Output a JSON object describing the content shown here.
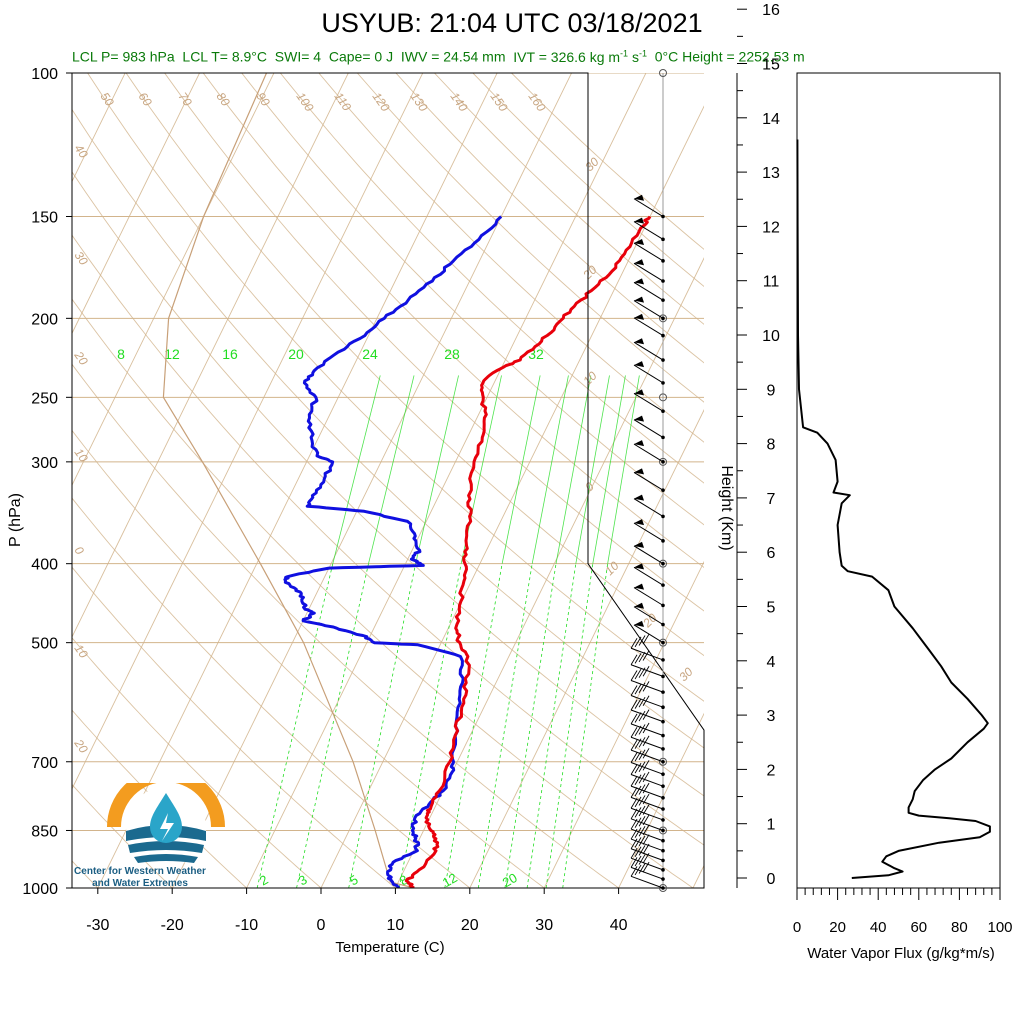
{
  "title": "USYUB: 21:04 UTC 03/18/2021",
  "subtitle": {
    "lcl_p": "LCL P= 983 hPa",
    "lcl_t": "LCL T= 8.9°C",
    "swi": "SWI= 4",
    "cape": "Cape= 0 J",
    "iwv": "IWV = 24.54 mm",
    "ivt_prefix": "IVT = 326.6 kg m",
    "ivt_exp1": "-1",
    "ivt_mid": " s",
    "ivt_exp2": "-1",
    "zero_height": "0°C Height = 2252.53 m"
  },
  "logo": {
    "line1": "Center for Western Weather",
    "line2": "and Water Extremes"
  },
  "colors": {
    "temperature": "#e8000b",
    "dewpoint": "#1010e0",
    "isotherm": "#d2b48c",
    "mixing_ratio": "#22dd22",
    "dry_adiabat": "#d2b48c",
    "parcel": "#c8a078",
    "subtitle": "#0a7a0a"
  },
  "chart_data": [
    {
      "type": "line",
      "name": "skew-T",
      "xlabel": "Temperature (C)",
      "ylabel": "P (hPa)",
      "x_ticks": [
        "-30",
        "-20",
        "-10",
        "0",
        "10",
        "20",
        "30",
        "40"
      ],
      "y_ticks": [
        "100",
        "150",
        "200",
        "250",
        "300",
        "400",
        "500",
        "700",
        "850",
        "1000"
      ],
      "y_scale": "log",
      "xlim": [
        -33,
        40
      ],
      "ylim": [
        1000,
        100
      ],
      "isotherm_labels": [
        "50",
        "60",
        "70",
        "80",
        "90",
        "100",
        "110",
        "120",
        "130",
        "140",
        "150",
        "160",
        "40",
        "30",
        "20",
        "10",
        "0",
        "10",
        "20",
        "30",
        "-30",
        "-20",
        "-10",
        "0",
        "10",
        "20",
        "30"
      ],
      "isotherm_label_values_left": [
        "40",
        "30",
        "20",
        "10",
        "0",
        "10",
        "20"
      ],
      "mixing_ratio_labels_top": [
        "8",
        "12",
        "16",
        "20",
        "24",
        "28",
        "32"
      ],
      "mixing_ratio_labels_bottom": [
        "2",
        "3",
        "5",
        "8",
        "12",
        "20"
      ],
      "temperature": [
        {
          "p": 1000,
          "t": 12.5
        },
        {
          "p": 980,
          "t": 11.0
        },
        {
          "p": 950,
          "t": 12.0
        },
        {
          "p": 900,
          "t": 13.0
        },
        {
          "p": 870,
          "t": 12.2
        },
        {
          "p": 850,
          "t": 11.0
        },
        {
          "p": 820,
          "t": 9.5
        },
        {
          "p": 800,
          "t": 9.5
        },
        {
          "p": 760,
          "t": 9.5
        },
        {
          "p": 700,
          "t": 9.0
        },
        {
          "p": 650,
          "t": 8.0
        },
        {
          "p": 600,
          "t": 7.0
        },
        {
          "p": 560,
          "t": 6.0
        },
        {
          "p": 520,
          "t": 4.5
        },
        {
          "p": 500,
          "t": 2.5
        },
        {
          "p": 480,
          "t": 1.0
        },
        {
          "p": 450,
          "t": 0.0
        },
        {
          "p": 420,
          "t": -1.0
        },
        {
          "p": 400,
          "t": -2.0
        },
        {
          "p": 380,
          "t": -3.0
        },
        {
          "p": 350,
          "t": -4.5
        },
        {
          "p": 330,
          "t": -6.0
        },
        {
          "p": 300,
          "t": -7.5
        },
        {
          "p": 280,
          "t": -8.0
        },
        {
          "p": 265,
          "t": -9.0
        },
        {
          "p": 250,
          "t": -10.5
        },
        {
          "p": 240,
          "t": -11.5
        },
        {
          "p": 232,
          "t": -10.5
        },
        {
          "p": 225,
          "t": -8.0
        },
        {
          "p": 215,
          "t": -6.5
        },
        {
          "p": 205,
          "t": -5.5
        },
        {
          "p": 195,
          "t": -4.5
        },
        {
          "p": 185,
          "t": -3.0
        },
        {
          "p": 175,
          "t": -1.5
        },
        {
          "p": 165,
          "t": -1.0
        },
        {
          "p": 155,
          "t": -0.5
        },
        {
          "p": 150,
          "t": 0.0
        }
      ],
      "dewpoint": [
        {
          "p": 1000,
          "t": 10.5
        },
        {
          "p": 980,
          "t": 9.0
        },
        {
          "p": 960,
          "t": 8.0
        },
        {
          "p": 930,
          "t": 8.0
        },
        {
          "p": 900,
          "t": 10.5
        },
        {
          "p": 870,
          "t": 9.5
        },
        {
          "p": 850,
          "t": 8.5
        },
        {
          "p": 820,
          "t": 8.0
        },
        {
          "p": 790,
          "t": 9.0
        },
        {
          "p": 760,
          "t": 10.0
        },
        {
          "p": 720,
          "t": 10.0
        },
        {
          "p": 700,
          "t": 9.5
        },
        {
          "p": 650,
          "t": 8.0
        },
        {
          "p": 600,
          "t": 6.5
        },
        {
          "p": 560,
          "t": 5.5
        },
        {
          "p": 520,
          "t": 3.5
        },
        {
          "p": 503,
          "t": -3.0
        },
        {
          "p": 500,
          "t": -9.0
        },
        {
          "p": 490,
          "t": -11.0
        },
        {
          "p": 480,
          "t": -15.0
        },
        {
          "p": 470,
          "t": -20.0
        },
        {
          "p": 460,
          "t": -19.0
        },
        {
          "p": 455,
          "t": -20.5
        },
        {
          "p": 440,
          "t": -21.5
        },
        {
          "p": 430,
          "t": -23.0
        },
        {
          "p": 420,
          "t": -25.0
        },
        {
          "p": 415,
          "t": -25.0
        },
        {
          "p": 405,
          "t": -20.0
        },
        {
          "p": 402,
          "t": -7.5
        },
        {
          "p": 395,
          "t": -9.5
        },
        {
          "p": 385,
          "t": -9.0
        },
        {
          "p": 370,
          "t": -10.5
        },
        {
          "p": 355,
          "t": -12.5
        },
        {
          "p": 345,
          "t": -19.0
        },
        {
          "p": 340,
          "t": -27.0
        },
        {
          "p": 330,
          "t": -27.0
        },
        {
          "p": 315,
          "t": -26.5
        },
        {
          "p": 300,
          "t": -26.5
        },
        {
          "p": 295,
          "t": -29.0
        },
        {
          "p": 280,
          "t": -31.0
        },
        {
          "p": 265,
          "t": -32.5
        },
        {
          "p": 250,
          "t": -33.0
        },
        {
          "p": 240,
          "t": -35.5
        },
        {
          "p": 232,
          "t": -35.0
        },
        {
          "p": 220,
          "t": -33.0
        },
        {
          "p": 210,
          "t": -30.5
        },
        {
          "p": 200,
          "t": -29.0
        },
        {
          "p": 190,
          "t": -27.0
        },
        {
          "p": 180,
          "t": -25.0
        },
        {
          "p": 170,
          "t": -23.5
        },
        {
          "p": 160,
          "t": -21.5
        },
        {
          "p": 150,
          "t": -20.0
        }
      ],
      "parcel": [
        {
          "p": 1000,
          "t": 12.5
        },
        {
          "p": 983,
          "t": 8.9
        },
        {
          "p": 850,
          "t": 3.5
        },
        {
          "p": 700,
          "t": -4.0
        },
        {
          "p": 500,
          "t": -18.5
        },
        {
          "p": 400,
          "t": -29.5
        },
        {
          "p": 300,
          "t": -44.0
        },
        {
          "p": 250,
          "t": -53.5
        },
        {
          "p": 200,
          "t": -58.0
        },
        {
          "p": 150,
          "t": -60.0
        },
        {
          "p": 100,
          "t": -61.0
        }
      ],
      "wind_levels_hpa": [
        1000,
        975,
        950,
        925,
        900,
        875,
        850,
        825,
        800,
        775,
        750,
        725,
        700,
        675,
        650,
        625,
        600,
        575,
        550,
        525,
        500,
        475,
        450,
        425,
        400,
        375,
        350,
        325,
        300,
        280,
        260,
        240,
        225,
        210,
        200,
        190,
        180,
        170,
        160,
        150
      ]
    },
    {
      "type": "line",
      "name": "water-vapor-flux",
      "xlabel": "Water Vapor Flux (g/kg*m/s)",
      "ylabel": "Height (Km)",
      "x_ticks": [
        "0",
        "20",
        "40",
        "60",
        "80",
        "100"
      ],
      "y_ticks": [
        "0",
        "1",
        "2",
        "3",
        "4",
        "5",
        "6",
        "7",
        "8",
        "9",
        "10",
        "11",
        "12",
        "13",
        "14",
        "15",
        "16"
      ],
      "xlim": [
        0,
        100
      ],
      "ylim": [
        0,
        16.3
      ],
      "points": [
        {
          "h": 0.0,
          "f": 27
        },
        {
          "h": 0.05,
          "f": 45
        },
        {
          "h": 0.12,
          "f": 52
        },
        {
          "h": 0.18,
          "f": 48
        },
        {
          "h": 0.3,
          "f": 42
        },
        {
          "h": 0.4,
          "f": 44
        },
        {
          "h": 0.5,
          "f": 50
        },
        {
          "h": 0.65,
          "f": 70
        },
        {
          "h": 0.75,
          "f": 90
        },
        {
          "h": 0.85,
          "f": 95
        },
        {
          "h": 0.95,
          "f": 95
        },
        {
          "h": 1.05,
          "f": 88
        },
        {
          "h": 1.1,
          "f": 75
        },
        {
          "h": 1.15,
          "f": 60
        },
        {
          "h": 1.2,
          "f": 55
        },
        {
          "h": 1.3,
          "f": 55
        },
        {
          "h": 1.45,
          "f": 57
        },
        {
          "h": 1.6,
          "f": 58
        },
        {
          "h": 1.8,
          "f": 62
        },
        {
          "h": 2.0,
          "f": 68
        },
        {
          "h": 2.2,
          "f": 76
        },
        {
          "h": 2.5,
          "f": 84
        },
        {
          "h": 2.75,
          "f": 92
        },
        {
          "h": 2.85,
          "f": 94
        },
        {
          "h": 3.0,
          "f": 91
        },
        {
          "h": 3.3,
          "f": 84
        },
        {
          "h": 3.6,
          "f": 76
        },
        {
          "h": 3.9,
          "f": 71
        },
        {
          "h": 4.2,
          "f": 65
        },
        {
          "h": 4.6,
          "f": 57
        },
        {
          "h": 5.0,
          "f": 48
        },
        {
          "h": 5.3,
          "f": 45
        },
        {
          "h": 5.55,
          "f": 37
        },
        {
          "h": 5.65,
          "f": 25
        },
        {
          "h": 5.75,
          "f": 22
        },
        {
          "h": 6.0,
          "f": 21
        },
        {
          "h": 6.5,
          "f": 20
        },
        {
          "h": 6.9,
          "f": 22
        },
        {
          "h": 7.05,
          "f": 26
        },
        {
          "h": 7.1,
          "f": 18
        },
        {
          "h": 7.3,
          "f": 20
        },
        {
          "h": 7.7,
          "f": 19
        },
        {
          "h": 8.0,
          "f": 15
        },
        {
          "h": 8.2,
          "f": 10
        },
        {
          "h": 8.3,
          "f": 3
        },
        {
          "h": 9.0,
          "f": 1
        },
        {
          "h": 10.0,
          "f": 0.5
        },
        {
          "h": 12.0,
          "f": 0.3
        },
        {
          "h": 13.6,
          "f": 0.2
        }
      ]
    }
  ]
}
